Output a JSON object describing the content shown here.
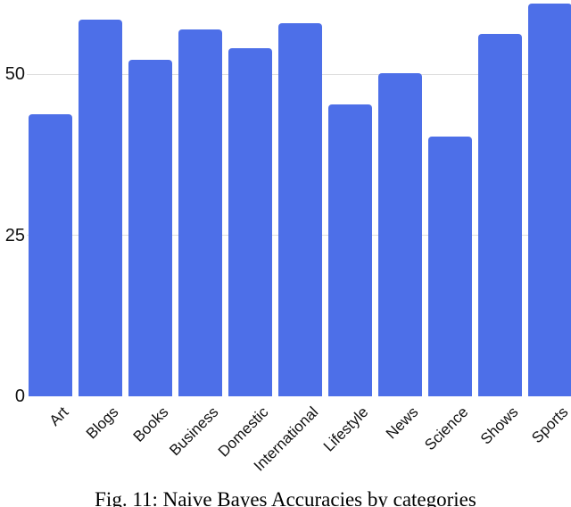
{
  "chart_data": {
    "type": "bar",
    "title": "",
    "xlabel": "",
    "ylabel": "",
    "categories": [
      "Art",
      "Blogs",
      "Books",
      "Business",
      "Domestic",
      "International",
      "Lifestyle",
      "News",
      "Science",
      "Shows",
      "Sports"
    ],
    "values": [
      43.8,
      58.4,
      52.2,
      56.9,
      54.0,
      57.9,
      45.3,
      50.2,
      40.3,
      56.2,
      61.0
    ],
    "series_name": "Naive Bayes accuracy",
    "ylim": [
      0,
      61.5
    ],
    "yticks": [
      "0",
      "25",
      "50"
    ],
    "grid": true,
    "legend": "none",
    "bar_color": "#4d6fe8",
    "gridline_color": "#dedede",
    "tick_label_color": "#111111"
  },
  "caption": "Fig. 11: Naive Bayes Accuracies by categories"
}
